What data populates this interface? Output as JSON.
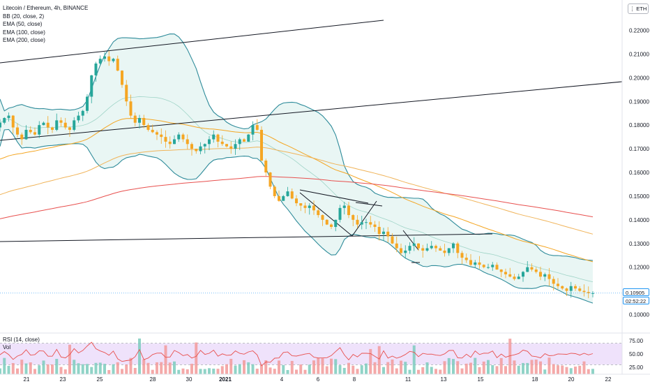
{
  "legend": {
    "symbol": "Litecoin / Ethereum, 4h, BINANCE",
    "bb": "BB (20, close, 2)",
    "ema50": "EMA (50, close)",
    "ema100": "EMA (100, close)",
    "ema200": "EMA (200, close)"
  },
  "currency_label": "ETH",
  "last_price": "0.10905",
  "countdown": "02:52:22",
  "rsi_label": "RSI (14, close)",
  "vol_label": "Vol",
  "colors": {
    "up": "#26a69a",
    "down": "#f5a623",
    "bb": "#2e8b9a",
    "bb_fill": "#e0f2ef",
    "ema50": "#f4a623",
    "ema100": "#f5a623",
    "ema200": "#e8504e",
    "rsi": "#e8504e",
    "rsi_band": "#efe2fb"
  },
  "chart_data": {
    "type": "candlestick",
    "y_ticks": [
      "0.22000",
      "0.21000",
      "0.20000",
      "0.19000",
      "0.18000",
      "0.17000",
      "0.16000",
      "0.15000",
      "0.14000",
      "0.13000",
      "0.12000",
      "0.11000",
      "0.10000"
    ],
    "ylim": [
      0.0968,
      0.2284
    ],
    "x_tick_labels": [
      "21",
      "23",
      "25",
      "28",
      "30",
      "2021",
      "4",
      "6",
      "8",
      "11",
      "13",
      "15",
      "18",
      "20",
      "22"
    ],
    "rsi_ticks": [
      "75.00",
      "50.00",
      "25.00"
    ],
    "rsi_band": [
      30,
      70
    ],
    "closes": [
      0.181,
      0.183,
      0.184,
      0.179,
      0.176,
      0.174,
      0.178,
      0.177,
      0.176,
      0.18,
      0.181,
      0.179,
      0.178,
      0.182,
      0.181,
      0.179,
      0.178,
      0.182,
      0.184,
      0.186,
      0.192,
      0.201,
      0.206,
      0.208,
      0.209,
      0.207,
      0.208,
      0.203,
      0.197,
      0.19,
      0.184,
      0.181,
      0.183,
      0.18,
      0.178,
      0.177,
      0.176,
      0.175,
      0.173,
      0.172,
      0.174,
      0.176,
      0.174,
      0.172,
      0.17,
      0.169,
      0.171,
      0.172,
      0.174,
      0.176,
      0.173,
      0.172,
      0.171,
      0.17,
      0.172,
      0.174,
      0.173,
      0.176,
      0.18,
      0.178,
      0.165,
      0.16,
      0.154,
      0.15,
      0.148,
      0.15,
      0.152,
      0.149,
      0.147,
      0.146,
      0.145,
      0.146,
      0.144,
      0.142,
      0.14,
      0.138,
      0.137,
      0.14,
      0.145,
      0.146,
      0.142,
      0.14,
      0.138,
      0.139,
      0.139,
      0.138,
      0.137,
      0.134,
      0.135,
      0.133,
      0.13,
      0.128,
      0.126,
      0.127,
      0.129,
      0.13,
      0.128,
      0.127,
      0.128,
      0.129,
      0.128,
      0.127,
      0.126,
      0.128,
      0.13,
      0.126,
      0.124,
      0.123,
      0.121,
      0.122,
      0.121,
      0.12,
      0.12,
      0.121,
      0.119,
      0.118,
      0.117,
      0.116,
      0.115,
      0.116,
      0.118,
      0.12,
      0.119,
      0.118,
      0.116,
      0.117,
      0.115,
      0.113,
      0.112,
      0.111,
      0.11,
      0.112,
      0.111,
      0.11,
      0.1095,
      0.109,
      0.10905
    ]
  }
}
